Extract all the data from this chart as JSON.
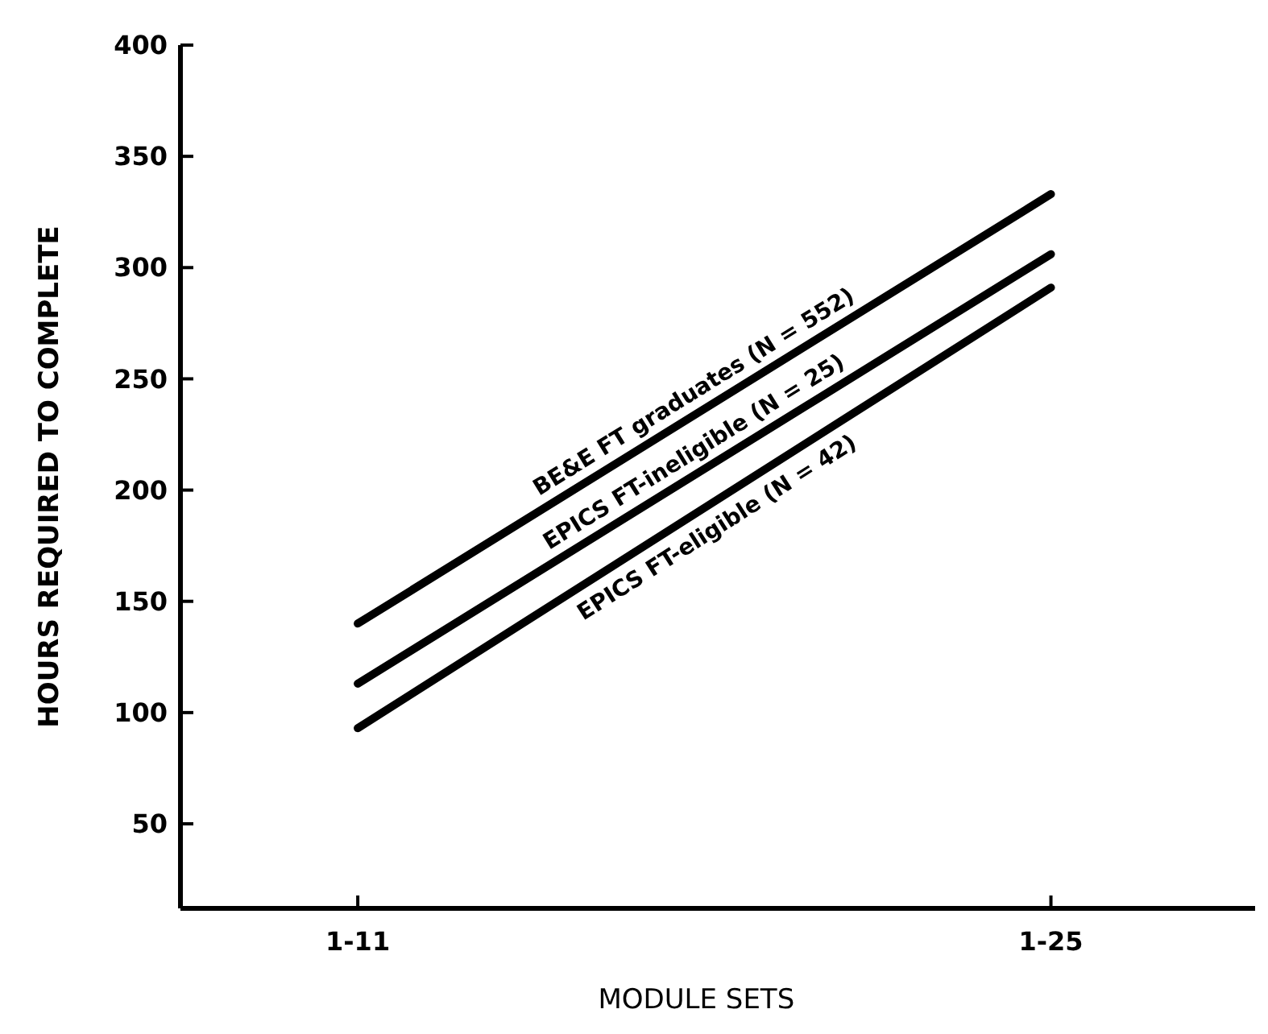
{
  "chart_data": {
    "type": "line",
    "xlabel": "MODULE SETS",
    "ylabel": "HOURS REQUIRED TO COMPLETE",
    "categories": [
      "1-11",
      "1-25"
    ],
    "series": [
      {
        "name": "BE&E FT graduates (N = 552)",
        "color": "#000000",
        "values": [
          140,
          333
        ]
      },
      {
        "name": "EPICS FT-ineligible (N = 25)",
        "color": "#000000",
        "values": [
          113,
          306
        ]
      },
      {
        "name": "EPICS FT-eligible (N = 42)",
        "color": "#000000",
        "values": [
          93,
          291
        ]
      }
    ],
    "ylim": [
      12,
      400
    ],
    "yticks": [
      50,
      100,
      150,
      200,
      250,
      300,
      350,
      400
    ],
    "grid": false,
    "marker": "none",
    "line_style": "solid"
  }
}
